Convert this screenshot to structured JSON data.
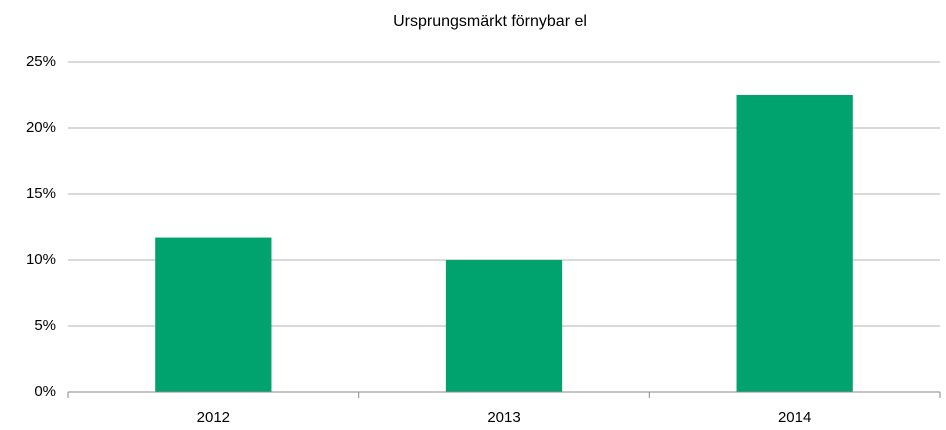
{
  "chart_data": {
    "type": "bar",
    "title": "Ursprungsmärkt förnybar el",
    "categories": [
      "2012",
      "2013",
      "2014"
    ],
    "values": [
      11.7,
      10.0,
      22.5
    ],
    "color": "#00a36e",
    "ylim": [
      0,
      25
    ],
    "yticks": [
      {
        "value": 0,
        "label": "0%"
      },
      {
        "value": 5,
        "label": "5%"
      },
      {
        "value": 10,
        "label": "10%"
      },
      {
        "value": 15,
        "label": "15%"
      },
      {
        "value": 20,
        "label": "20%"
      },
      {
        "value": 25,
        "label": "25%"
      }
    ],
    "grid": true
  }
}
